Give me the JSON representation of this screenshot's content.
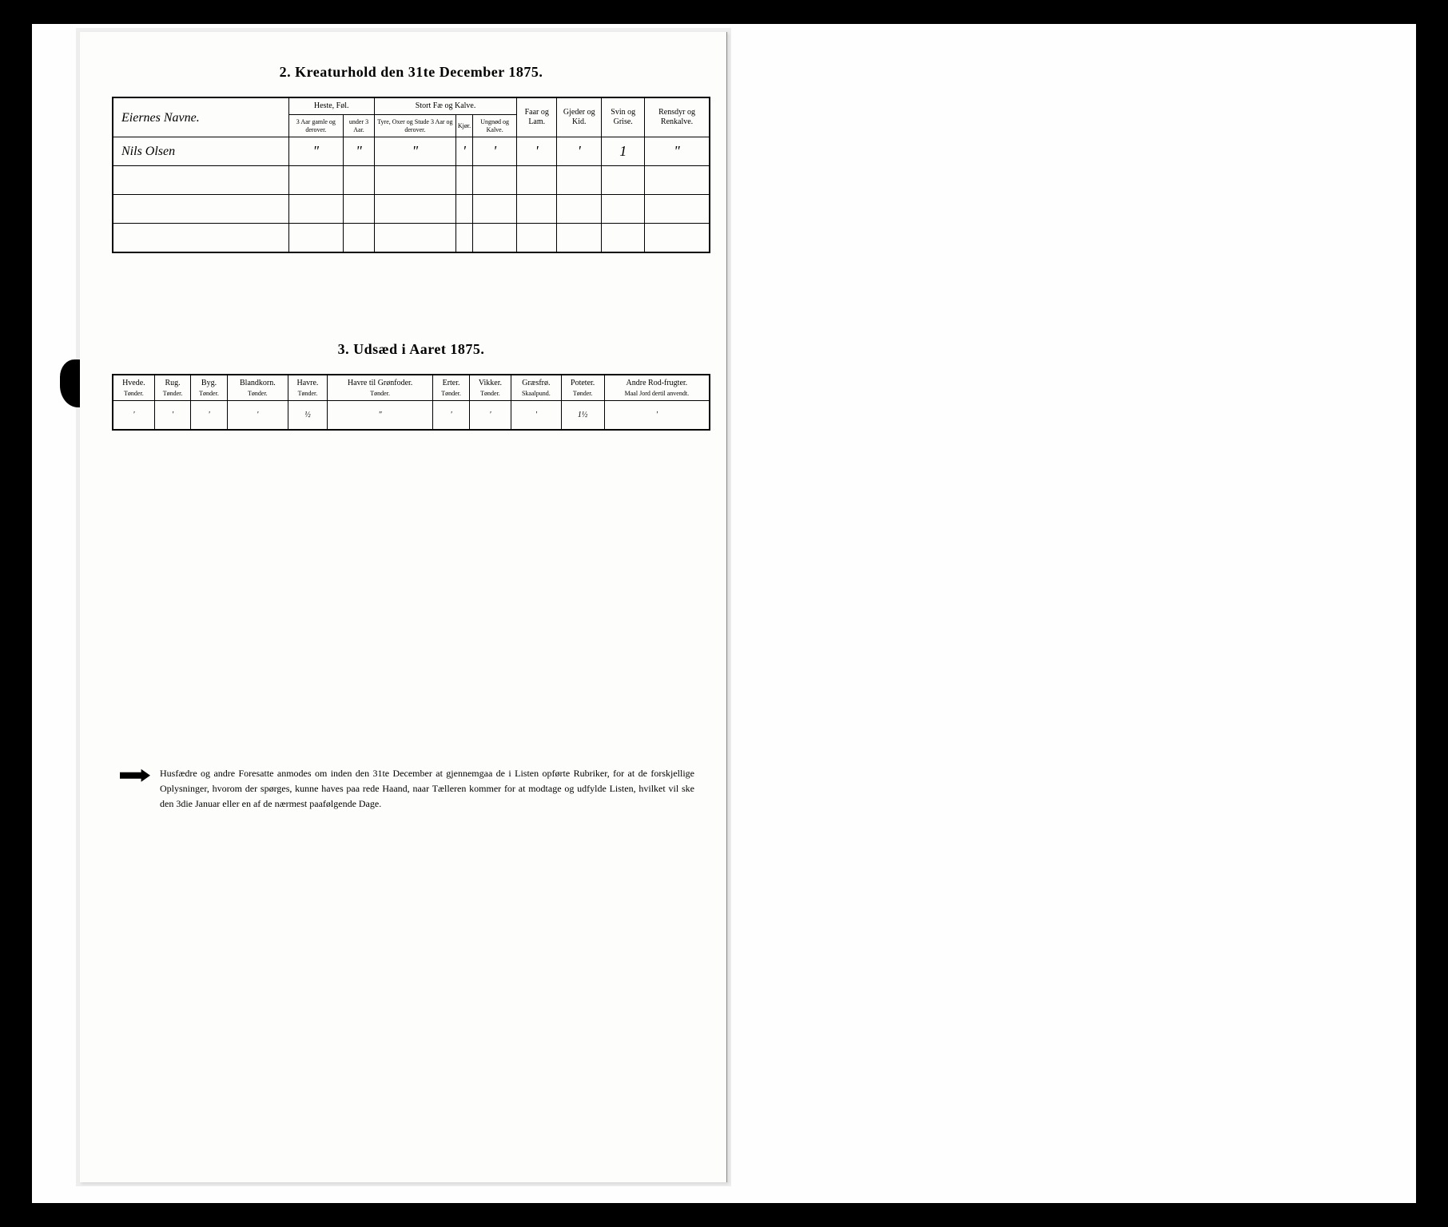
{
  "section2": {
    "title": "2.  Kreaturhold den 31te December 1875.",
    "headers": {
      "name": "Eiernes Navne.",
      "group1": "Heste, Føl.",
      "group1_sub1": "3 Aar gamle og derover.",
      "group1_sub2": "under 3 Aar.",
      "group2": "Stort Fæ og Kalve.",
      "group2_sub1": "Tyre, Oxer og Stude 3 Aar og derover.",
      "group2_sub2": "Kjør.",
      "group2_sub3": "Ungnød og Kalve.",
      "col3": "Faar og Lam.",
      "col4": "Gjeder og Kid.",
      "col5": "Svin og Grise.",
      "col6": "Rensdyr og Renkalve."
    },
    "rows": [
      {
        "name": "Nils Olsen",
        "c1": "\"",
        "c2": "\"",
        "c3": "\"",
        "c4": "'",
        "c5": "'",
        "c6": "'",
        "c7": "'",
        "c8": "1",
        "c9": "\""
      },
      {
        "name": "",
        "c1": "",
        "c2": "",
        "c3": "",
        "c4": "",
        "c5": "",
        "c6": "",
        "c7": "",
        "c8": "",
        "c9": ""
      },
      {
        "name": "",
        "c1": "",
        "c2": "",
        "c3": "",
        "c4": "",
        "c5": "",
        "c6": "",
        "c7": "",
        "c8": "",
        "c9": ""
      },
      {
        "name": "",
        "c1": "",
        "c2": "",
        "c3": "",
        "c4": "",
        "c5": "",
        "c6": "",
        "c7": "",
        "c8": "",
        "c9": ""
      }
    ]
  },
  "section3": {
    "title": "3.  Udsæd i Aaret 1875.",
    "columns": [
      {
        "label": "Hvede.",
        "unit": "Tønder."
      },
      {
        "label": "Rug.",
        "unit": "Tønder."
      },
      {
        "label": "Byg.",
        "unit": "Tønder."
      },
      {
        "label": "Blandkorn.",
        "unit": "Tønder."
      },
      {
        "label": "Havre.",
        "unit": "Tønder."
      },
      {
        "label": "Havre til Grønfoder.",
        "unit": "Tønder."
      },
      {
        "label": "Erter.",
        "unit": "Tønder."
      },
      {
        "label": "Vikker.",
        "unit": "Tønder."
      },
      {
        "label": "Græsfrø.",
        "unit": "Skaalpund."
      },
      {
        "label": "Poteter.",
        "unit": "Tønder."
      },
      {
        "label": "Andre Rod-frugter.",
        "unit": "Maal Jord dertil anvendt."
      }
    ],
    "row": [
      "'",
      "'",
      "'",
      "'",
      "½",
      "\"",
      "'",
      "'",
      "'",
      "1½",
      "'"
    ]
  },
  "footnote": "Husfædre og andre Foresatte anmodes om inden den 31te December at gjennemgaa de i Listen opførte Rubriker, for at de forskjellige Oplysninger, hvorom der spørges, kunne haves paa rede Haand, naar Tælleren kommer for at modtage og udfylde Listen, hvilket vil ske den 3die Januar eller en af de nærmest paafølgende Dage."
}
